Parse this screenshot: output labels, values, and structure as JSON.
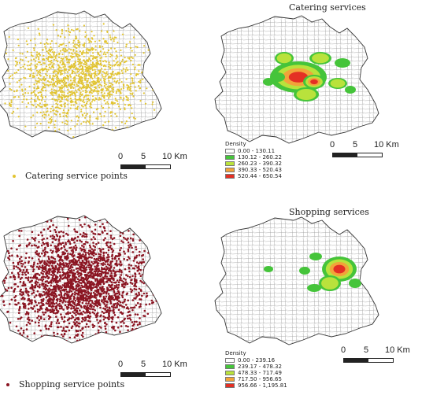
{
  "catering": {
    "points_legend": "Catering service points",
    "points_color": "#e2c431",
    "density_title": "Catering services",
    "scale": {
      "zero": "0",
      "mid": "5",
      "max": "10 Km"
    },
    "legend": {
      "title": "Density",
      "classes": [
        {
          "label": "0.00 - 130.11",
          "color": "#ffffff"
        },
        {
          "label": "130.12 - 260.22",
          "color": "#45c43a"
        },
        {
          "label": "260.23 - 390.32",
          "color": "#b9e23c"
        },
        {
          "label": "390.33 - 520.43",
          "color": "#f2a33a"
        },
        {
          "label": "520.44 - 650.54",
          "color": "#e42f24"
        }
      ]
    }
  },
  "shopping": {
    "points_legend": "Shopping service points",
    "points_color": "#8b1522",
    "density_title": "Shopping services",
    "scale": {
      "zero": "0",
      "mid": "5",
      "max": "10 Km"
    },
    "legend": {
      "title": "Density",
      "classes": [
        {
          "label": "0.00 - 239.16",
          "color": "#ffffff"
        },
        {
          "label": "239.17 - 478.32",
          "color": "#45c43a"
        },
        {
          "label": "478.33 - 717.49",
          "color": "#b9e23c"
        },
        {
          "label": "717.50 - 956.65",
          "color": "#f2a33a"
        },
        {
          "label": "956.66 - 1,195.81",
          "color": "#e42f24"
        }
      ]
    }
  }
}
